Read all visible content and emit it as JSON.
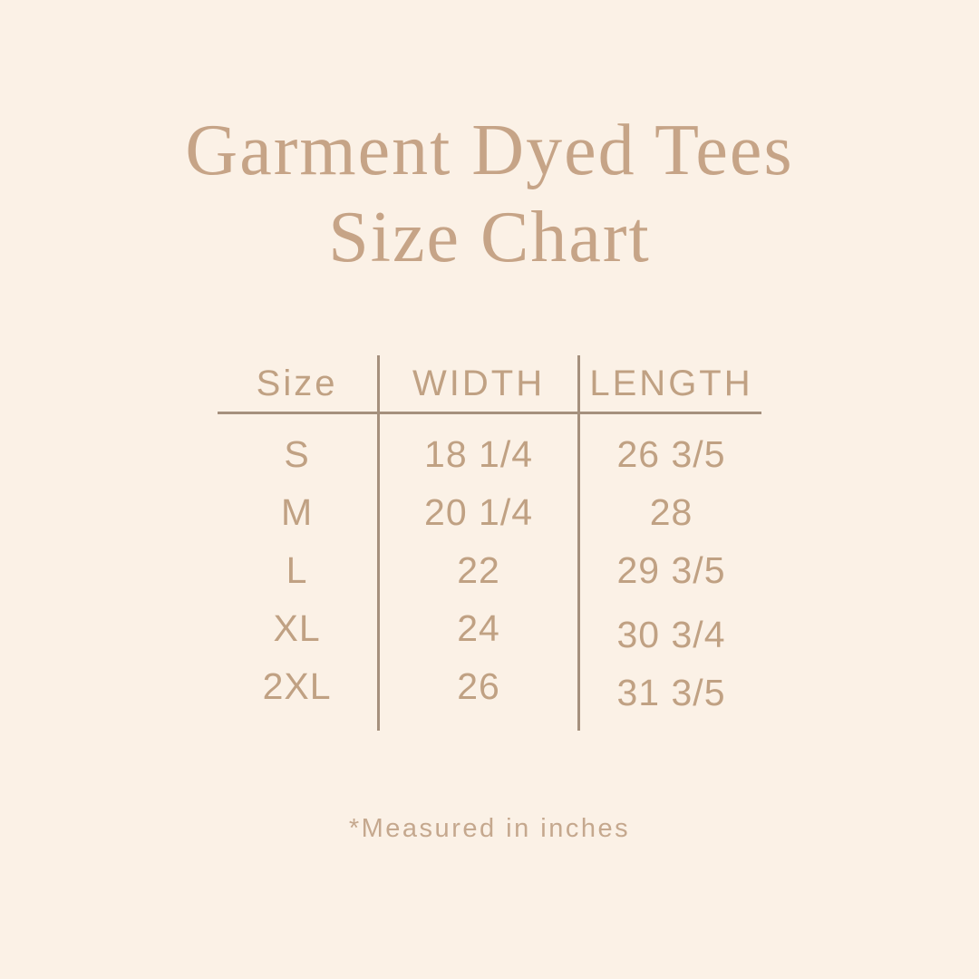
{
  "title": {
    "line1": "Garment Dyed Tees",
    "line2": "Size Chart"
  },
  "table": {
    "headers": [
      "Size",
      "WIDTH",
      "LENGTH"
    ],
    "rows": [
      {
        "size": "S",
        "width": "18 1/4",
        "length": "26 3/5"
      },
      {
        "size": "M",
        "width": "20 1/4",
        "length": "28"
      },
      {
        "size": "L",
        "width": "22",
        "length": "29 3/5"
      },
      {
        "size": "XL",
        "width": "24",
        "length": "30 3/4"
      },
      {
        "size": "2XL",
        "width": "26",
        "length": "31 3/5"
      }
    ]
  },
  "footnote": "*Measured in inches",
  "colors": {
    "background": "#fbf1e6",
    "title_text": "#c6a487",
    "table_text": "#c0a183",
    "divider_line": "#a5907d",
    "footnote_text": "#c5a88e"
  },
  "units_note": "inches"
}
